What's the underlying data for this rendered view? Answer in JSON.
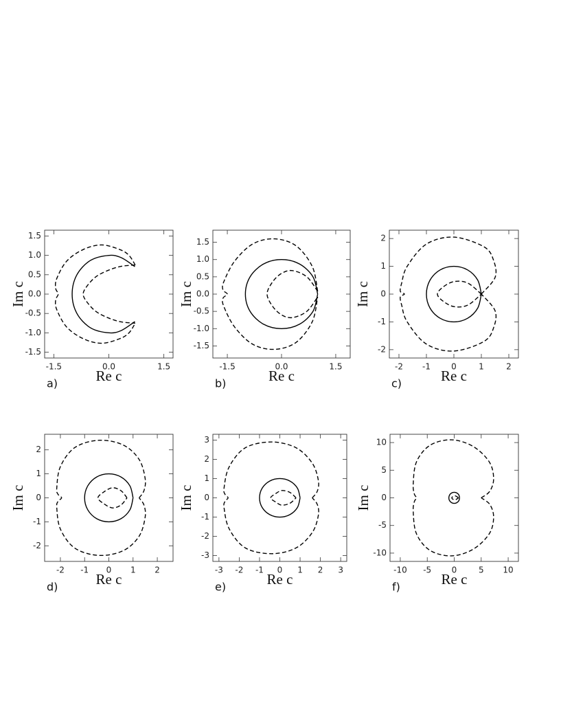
{
  "chart_data": [
    {
      "type": "line",
      "panel_label": "a)",
      "xlabel": "Re c",
      "ylabel": "Im c",
      "xlim": [
        -1.75,
        1.75
      ],
      "ylim": [
        -1.65,
        1.65
      ],
      "xticks": [
        -1.5,
        {
          "value": 0,
          "label": "0.0"
        },
        1.5
      ],
      "yticks": [
        -1.5,
        {
          "value": -1,
          "label": "-1.0"
        },
        -0.5,
        {
          "value": 0,
          "label": "0.0"
        },
        0.5,
        {
          "value": 1,
          "label": "1.0"
        },
        1.5
      ],
      "series": [
        {
          "style": "solid",
          "color": "#000000",
          "x": [
            0.71,
            0.34,
            0,
            -0.5,
            -0.87,
            -1,
            -0.87,
            -0.5,
            0,
            0.34,
            0.71
          ],
          "y": [
            0.71,
            0.94,
            1,
            0.87,
            0.5,
            0,
            -0.5,
            -0.87,
            -1,
            -0.94,
            -0.71
          ]
        },
        {
          "style": "dashed",
          "color": "#000000",
          "x": [
            0.72,
            0.55,
            0.3,
            -0.2,
            -0.7,
            -1.15,
            -1.42,
            -1.45,
            -1.38,
            -1.45,
            -1.42,
            -1.15,
            -0.7,
            -0.2,
            0.3,
            0.55,
            0.72
          ],
          "y": [
            0.75,
            1.0,
            1.15,
            1.27,
            1.15,
            0.85,
            0.4,
            0.15,
            0,
            -0.15,
            -0.4,
            -0.85,
            -1.15,
            -1.27,
            -1.15,
            -1.0,
            -0.75
          ]
        },
        {
          "style": "dashed",
          "color": "#000000",
          "x": [
            0.72,
            0.35,
            0,
            -0.35,
            -0.6,
            -0.7,
            -0.6,
            -0.35,
            0,
            0.35,
            0.72
          ],
          "y": [
            0.75,
            0.72,
            0.62,
            0.45,
            0.2,
            0,
            -0.2,
            -0.45,
            -0.62,
            -0.72,
            -0.75
          ]
        }
      ]
    },
    {
      "type": "line",
      "panel_label": "b)",
      "xlabel": "Re c",
      "ylabel": "Im c",
      "xlim": [
        -1.9,
        1.9
      ],
      "ylim": [
        -1.85,
        1.85
      ],
      "xticks": [
        -1.5,
        {
          "value": 0,
          "label": "0.0"
        },
        1.5
      ],
      "yticks": [
        -1.5,
        {
          "value": -1,
          "label": "-1.0"
        },
        -0.5,
        {
          "value": 0,
          "label": "0.0"
        },
        0.5,
        {
          "value": 1,
          "label": "1.0"
        },
        1.5
      ],
      "series": [
        {
          "style": "solid",
          "color": "#000000",
          "x": [
            1,
            0.87,
            0.5,
            0,
            -0.5,
            -0.87,
            -1,
            -0.87,
            -0.5,
            0,
            0.5,
            0.87,
            1
          ],
          "y": [
            0,
            0.5,
            0.87,
            1,
            0.87,
            0.5,
            0,
            -0.5,
            -0.87,
            -1,
            -0.87,
            -0.5,
            0
          ]
        },
        {
          "style": "dashed",
          "color": "#000000",
          "x": [
            1,
            0.85,
            0.4,
            -0.2,
            -0.8,
            -1.3,
            -1.6,
            -1.62,
            -1.5,
            -1.62,
            -1.6,
            -1.3,
            -0.8,
            -0.2,
            0.4,
            0.85,
            1
          ],
          "y": [
            0.08,
            0.8,
            1.4,
            1.6,
            1.45,
            0.95,
            0.35,
            0.12,
            0,
            -0.12,
            -0.35,
            -0.95,
            -1.45,
            -1.6,
            -1.4,
            -0.8,
            -0.08
          ]
        },
        {
          "style": "dashed",
          "color": "#000000",
          "x": [
            1,
            0.7,
            0.3,
            0,
            -0.25,
            -0.4,
            -0.25,
            0,
            0.3,
            0.7,
            1
          ],
          "y": [
            0.08,
            0.5,
            0.68,
            0.6,
            0.35,
            0,
            -0.35,
            -0.6,
            -0.68,
            -0.5,
            -0.08
          ]
        }
      ]
    },
    {
      "type": "line",
      "panel_label": "c)",
      "xlabel": "Re c",
      "ylabel": "Im c",
      "xlim": [
        -2.35,
        2.35
      ],
      "ylim": [
        -2.3,
        2.3
      ],
      "xticks": [
        -2,
        -1,
        0,
        1,
        2
      ],
      "yticks": [
        -2,
        -1,
        0,
        1,
        2
      ],
      "series": [
        {
          "style": "solid",
          "color": "#000000",
          "x": [
            1,
            0.87,
            0.5,
            0,
            -0.5,
            -0.87,
            -1,
            -0.87,
            -0.5,
            0,
            0.5,
            0.87,
            1
          ],
          "y": [
            0,
            0.5,
            0.87,
            1,
            0.87,
            0.5,
            0,
            -0.5,
            -0.87,
            -1,
            -0.87,
            -0.5,
            0
          ]
        },
        {
          "style": "dashed",
          "color": "#000000",
          "x": [
            1,
            1.5,
            1.45,
            1.1,
            0,
            -1,
            -1.7,
            -1.9,
            -1.95,
            -1.8,
            -1.95,
            -1.9,
            -1.7,
            -1,
            0,
            1.1,
            1.45,
            1.5,
            1
          ],
          "y": [
            0,
            0.6,
            1.2,
            1.7,
            2.05,
            1.8,
            1.0,
            0.4,
            0.1,
            0,
            -0.1,
            -0.4,
            -1.0,
            -1.8,
            -2.05,
            -1.7,
            -1.2,
            -0.6,
            0
          ]
        },
        {
          "style": "dashed",
          "color": "#000000",
          "x": [
            1,
            0.5,
            0,
            -0.4,
            -0.6,
            -0.4,
            0,
            0.5,
            1
          ],
          "y": [
            0,
            0.4,
            0.45,
            0.25,
            0,
            -0.25,
            -0.45,
            -0.4,
            0
          ]
        }
      ]
    },
    {
      "type": "line",
      "panel_label": "d)",
      "xlabel": "Re c",
      "ylabel": "Im c",
      "xlim": [
        -2.65,
        2.65
      ],
      "ylim": [
        -2.65,
        2.65
      ],
      "xticks": [
        -2,
        -1,
        0,
        1,
        2
      ],
      "yticks": [
        -2,
        -1,
        0,
        1,
        2
      ],
      "series": [
        {
          "style": "solid",
          "color": "#000000",
          "x": [
            1,
            0.87,
            0.5,
            0,
            -0.5,
            -0.87,
            -1,
            -0.87,
            -0.5,
            0,
            0.5,
            0.87,
            1
          ],
          "y": [
            0,
            0.5,
            0.87,
            1,
            0.87,
            0.5,
            0,
            -0.5,
            -0.87,
            -1,
            -0.87,
            -0.5,
            0
          ]
        },
        {
          "style": "dashed",
          "color": "#000000",
          "x": [
            1.25,
            1.45,
            1.5,
            1.25,
            0.6,
            -0.4,
            -1.4,
            -2.0,
            -2.15,
            -2.1,
            -1.95,
            -2.1,
            -2.15,
            -2.0,
            -1.4,
            -0.4,
            0.6,
            1.25,
            1.5,
            1.45,
            1.25
          ],
          "y": [
            0,
            0.3,
            0.8,
            1.6,
            2.2,
            2.4,
            2.1,
            1.3,
            0.4,
            0.15,
            0,
            -0.15,
            -0.4,
            -1.3,
            -2.1,
            -2.4,
            -2.2,
            -1.6,
            -0.8,
            -0.3,
            0
          ]
        },
        {
          "style": "dashed",
          "color": "#000000",
          "x": [
            0.75,
            0.5,
            0.15,
            -0.2,
            -0.45,
            -0.2,
            0.15,
            0.5,
            0.75
          ],
          "y": [
            0,
            0.3,
            0.42,
            0.25,
            0,
            -0.25,
            -0.42,
            -0.3,
            0
          ]
        }
      ]
    },
    {
      "type": "line",
      "panel_label": "e)",
      "xlabel": "Re c",
      "ylabel": "Im c",
      "xlim": [
        -3.3,
        3.3
      ],
      "ylim": [
        -3.3,
        3.3
      ],
      "xticks": [
        -3,
        -2,
        -1,
        0,
        1,
        2,
        3
      ],
      "yticks": [
        -3,
        -2,
        -1,
        0,
        1,
        2,
        3
      ],
      "series": [
        {
          "style": "solid",
          "color": "#000000",
          "x": [
            1,
            0.87,
            0.5,
            0,
            -0.5,
            -0.87,
            -1,
            -0.87,
            -0.5,
            0,
            0.5,
            0.87,
            1
          ],
          "y": [
            0,
            0.5,
            0.87,
            1,
            0.87,
            0.5,
            0,
            -0.5,
            -0.87,
            -1,
            -0.87,
            -0.5,
            0
          ]
        },
        {
          "style": "dashed",
          "color": "#000000",
          "x": [
            1.6,
            1.85,
            1.9,
            1.6,
            0.8,
            -0.4,
            -1.7,
            -2.5,
            -2.75,
            -2.7,
            -2.55,
            -2.7,
            -2.75,
            -2.5,
            -1.7,
            -0.4,
            0.8,
            1.6,
            1.9,
            1.85,
            1.6
          ],
          "y": [
            0,
            0.35,
            0.9,
            1.8,
            2.6,
            2.9,
            2.6,
            1.6,
            0.5,
            0.18,
            0,
            -0.18,
            -0.5,
            -1.6,
            -2.6,
            -2.9,
            -2.6,
            -1.8,
            -0.9,
            -0.35,
            0
          ]
        },
        {
          "style": "dashed",
          "color": "#000000",
          "x": [
            0.8,
            0.5,
            0.1,
            -0.2,
            -0.45,
            -0.2,
            0.1,
            0.5,
            0.8
          ],
          "y": [
            0,
            0.28,
            0.38,
            0.22,
            0,
            -0.22,
            -0.38,
            -0.28,
            0
          ]
        }
      ]
    },
    {
      "type": "line",
      "panel_label": "f)",
      "xlabel": "Re c",
      "ylabel": "Im c",
      "xlim": [
        -11.9,
        11.9
      ],
      "ylim": [
        -11.5,
        11.5
      ],
      "xticks": [
        -10,
        -5,
        0,
        5,
        10
      ],
      "yticks": [
        -10,
        -5,
        0,
        5,
        10
      ],
      "series": [
        {
          "style": "solid",
          "color": "#000000",
          "x": [
            1,
            0.87,
            0.5,
            0,
            -0.5,
            -0.87,
            -1,
            -0.87,
            -0.5,
            0,
            0.5,
            0.87,
            1
          ],
          "y": [
            0,
            0.5,
            0.87,
            1,
            0.87,
            0.5,
            0,
            -0.5,
            -0.87,
            -1,
            -0.87,
            -0.5,
            0
          ]
        },
        {
          "style": "dashed",
          "color": "#000000",
          "x": [
            5,
            6.6,
            7.3,
            6.5,
            3.5,
            -0.5,
            -4.5,
            -7,
            -7.6,
            -7.4,
            -7,
            -7.4,
            -7.6,
            -7,
            -4.5,
            -0.5,
            3.5,
            6.5,
            7.3,
            6.6,
            5
          ],
          "y": [
            0,
            1.2,
            3.5,
            6.5,
            9.3,
            10.5,
            9.5,
            6.5,
            2.5,
            0.7,
            0,
            -0.7,
            -2.5,
            -6.5,
            -9.5,
            -10.5,
            -9.3,
            -6.5,
            -3.5,
            -1.2,
            0
          ]
        },
        {
          "style": "dashed",
          "color": "#000000",
          "x": [
            0.8,
            0.1,
            -0.45,
            0.1,
            0.8
          ],
          "y": [
            0,
            0.38,
            0,
            -0.38,
            0
          ]
        }
      ]
    }
  ]
}
